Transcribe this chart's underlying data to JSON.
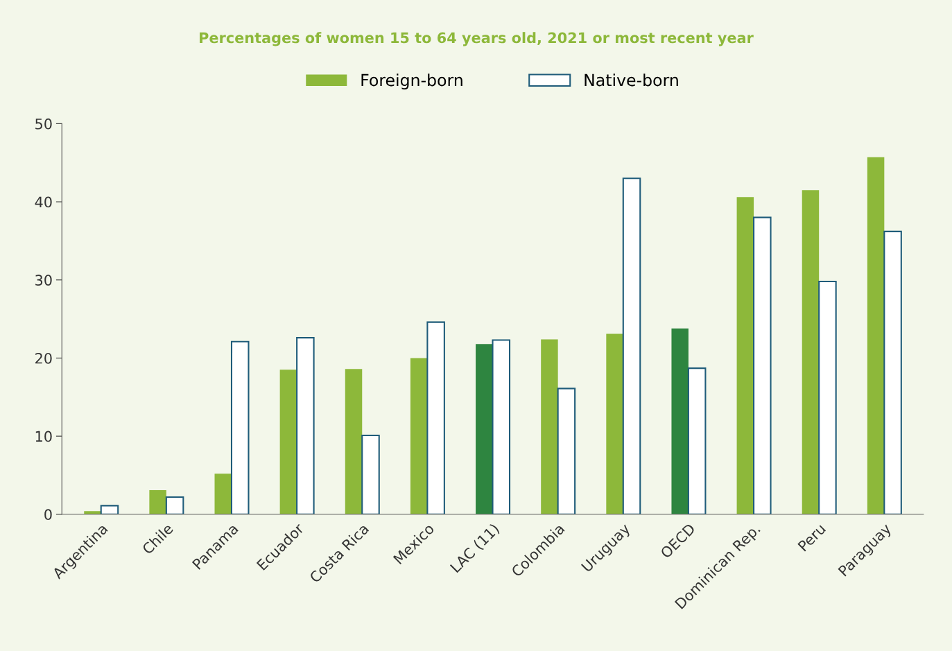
{
  "chart_data": {
    "type": "bar",
    "title": "Percentages of women 15 to 64 years old, 2021 or most recent year",
    "categories": [
      "Argentina",
      "Chile",
      "Panama",
      "Ecuador",
      "Costa Rica",
      "Mexico",
      "LAC (11)",
      "Colombia",
      "Uruguay",
      "OECD",
      "Dominican Rep.",
      "Peru",
      "Paraguay"
    ],
    "series": [
      {
        "name": "Foreign-born",
        "color": "#8db83a",
        "colors": [
          "#8db83a",
          "#8db83a",
          "#8db83a",
          "#8db83a",
          "#8db83a",
          "#8db83a",
          "#2e8540",
          "#8db83a",
          "#8db83a",
          "#2e8540",
          "#8db83a",
          "#8db83a",
          "#8db83a"
        ],
        "values": [
          0.4,
          3.1,
          5.2,
          18.5,
          18.6,
          20.0,
          21.8,
          22.4,
          23.1,
          23.8,
          40.6,
          41.5,
          45.7
        ]
      },
      {
        "name": "Native-born",
        "color": "#1f5c7a",
        "values": [
          1.1,
          2.2,
          22.1,
          22.6,
          10.1,
          24.6,
          22.3,
          16.1,
          43.0,
          18.7,
          38.0,
          29.8,
          36.2
        ]
      }
    ],
    "ylim": [
      0,
      50
    ],
    "yticks": [
      0,
      10,
      20,
      30,
      40,
      50
    ],
    "grid": false,
    "legend": "top"
  }
}
